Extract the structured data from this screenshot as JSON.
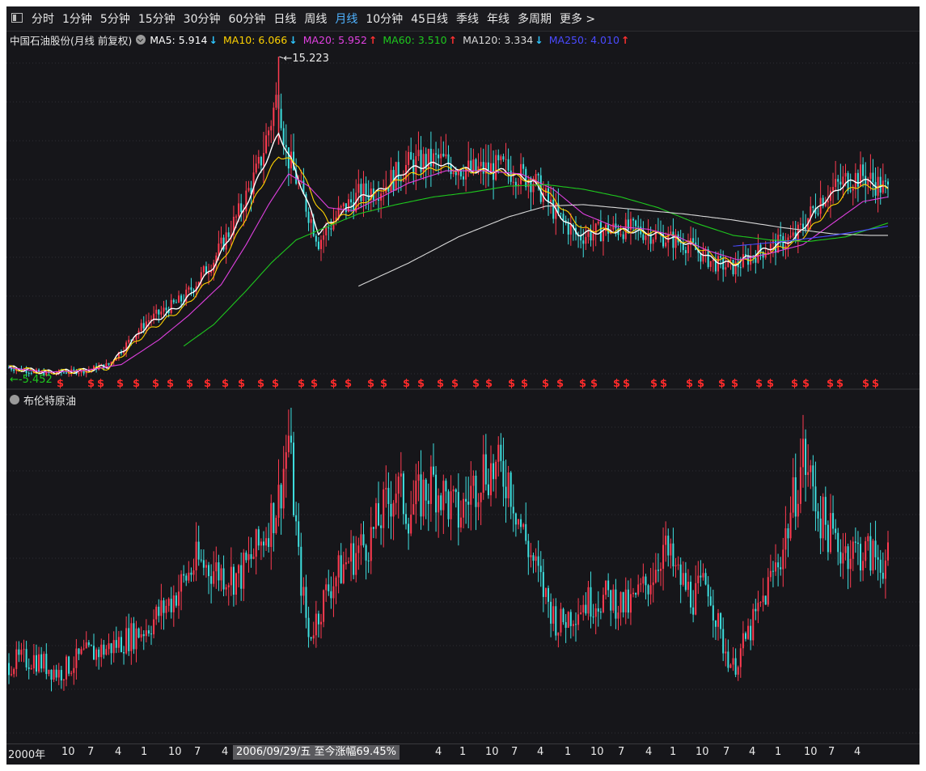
{
  "tabs": [
    "分时",
    "1分钟",
    "5分钟",
    "15分钟",
    "30分钟",
    "60分钟",
    "日线",
    "周线",
    "月线",
    "10分钟",
    "45日线",
    "季线",
    "年线",
    "多周期",
    "更多 >"
  ],
  "active_tab": 8,
  "stock": {
    "name": "中国石油股份(月线 前复权)"
  },
  "ma_legend": [
    {
      "label": "MA5: 5.914",
      "color": "#ffffff",
      "arrow": "↓",
      "arrow_color": "#2ec6ff"
    },
    {
      "label": "MA10: 6.066",
      "color": "#ffd200",
      "arrow": "↓",
      "arrow_color": "#2ec6ff"
    },
    {
      "label": "MA20: 5.952",
      "color": "#e040e0",
      "arrow": "↑",
      "arrow_color": "#ff3030"
    },
    {
      "label": "MA60: 3.510",
      "color": "#1ec81e",
      "arrow": "↑",
      "arrow_color": "#ff3030"
    },
    {
      "label": "MA120: 3.334",
      "color": "#d8d8d8",
      "arrow": "↓",
      "arrow_color": "#2ec6ff"
    },
    {
      "label": "MA250: 4.010",
      "color": "#4a4aff",
      "arrow": "↑",
      "arrow_color": "#ff3030"
    }
  ],
  "sub_chart": {
    "title": "布伦特原油"
  },
  "cursor_label": "2006/09/29/五  至今涨幅69.45%",
  "x_ticks": [
    "2000年",
    "10",
    "7",
    "4",
    "1",
    "10",
    "7",
    "4",
    "4",
    "1",
    "10",
    "7",
    "4",
    "1",
    "10",
    "7",
    "4",
    "1",
    "10",
    "7",
    "4",
    "1",
    "10",
    "7",
    "4"
  ],
  "colors": {
    "up": "#ff3b50",
    "down": "#3ee0e0",
    "bg": "#16161a",
    "grid": "#2e2e34"
  },
  "chart_data": [
    {
      "type": "candlestick",
      "title": "中国石油股份(月线 前复权)",
      "annotations": {
        "max": "15.223",
        "min": "-5.452",
        "marker": "$"
      },
      "y_annotated_range": [
        -5.452,
        15.223
      ],
      "anchors": [
        [
          0,
          -5.0
        ],
        [
          15,
          -5.4
        ],
        [
          30,
          -5.2
        ],
        [
          40,
          -4.8
        ],
        [
          55,
          -2.0
        ],
        [
          70,
          -0.5
        ],
        [
          82,
          2.0
        ],
        [
          92,
          5.0
        ],
        [
          100,
          8.0
        ],
        [
          108,
          13.0
        ],
        [
          111,
          9.0
        ],
        [
          118,
          6.0
        ],
        [
          124,
          3.2
        ],
        [
          132,
          5.0
        ],
        [
          140,
          6.2
        ],
        [
          150,
          6.8
        ],
        [
          160,
          8.2
        ],
        [
          172,
          8.5
        ],
        [
          185,
          7.8
        ],
        [
          198,
          8.0
        ],
        [
          210,
          7.2
        ],
        [
          220,
          4.8
        ],
        [
          228,
          3.5
        ],
        [
          240,
          4.0
        ],
        [
          250,
          4.0
        ],
        [
          262,
          3.5
        ],
        [
          272,
          3.0
        ],
        [
          282,
          1.8
        ],
        [
          290,
          1.5
        ],
        [
          300,
          2.5
        ],
        [
          315,
          3.5
        ],
        [
          325,
          6.0
        ],
        [
          335,
          7.2
        ],
        [
          342,
          7.5
        ],
        [
          352,
          6.5
        ]
      ],
      "ma_lines": [
        {
          "name": "MA5",
          "start": 0,
          "anchors": [
            [
              0,
              -5.0
            ],
            [
              15,
              -5.3
            ],
            [
              30,
              -5.2
            ],
            [
              40,
              -4.9
            ],
            [
              55,
              -2.3
            ],
            [
              70,
              -0.8
            ],
            [
              82,
              1.6
            ],
            [
              92,
              4.5
            ],
            [
              100,
              7.4
            ],
            [
              108,
              10.2
            ],
            [
              113,
              8.5
            ],
            [
              118,
              6.4
            ],
            [
              124,
              3.8
            ],
            [
              132,
              4.8
            ],
            [
              140,
              6.0
            ],
            [
              150,
              6.6
            ],
            [
              160,
              7.9
            ],
            [
              172,
              8.3
            ],
            [
              185,
              7.8
            ],
            [
              198,
              7.8
            ],
            [
              210,
              7.1
            ],
            [
              220,
              5.0
            ],
            [
              228,
              3.7
            ],
            [
              240,
              3.9
            ],
            [
              250,
              3.9
            ],
            [
              262,
              3.6
            ],
            [
              272,
              3.1
            ],
            [
              282,
              2.0
            ],
            [
              290,
              1.7
            ],
            [
              300,
              2.5
            ],
            [
              315,
              3.4
            ],
            [
              325,
              5.6
            ],
            [
              335,
              7.0
            ],
            [
              342,
              7.2
            ],
            [
              352,
              6.6
            ]
          ]
        },
        {
          "name": "MA10",
          "start": 0,
          "anchors": [
            [
              0,
              -5.0
            ],
            [
              15,
              -5.3
            ],
            [
              30,
              -5.2
            ],
            [
              40,
              -5.0
            ],
            [
              55,
              -2.7
            ],
            [
              70,
              -1.1
            ],
            [
              82,
              1.0
            ],
            [
              92,
              3.8
            ],
            [
              100,
              6.5
            ],
            [
              108,
              8.8
            ],
            [
              116,
              8.2
            ],
            [
              122,
              6.0
            ],
            [
              128,
              4.4
            ],
            [
              136,
              5.0
            ],
            [
              146,
              6.2
            ],
            [
              158,
              7.4
            ],
            [
              172,
              8.0
            ],
            [
              185,
              7.8
            ],
            [
              198,
              7.7
            ],
            [
              212,
              7.0
            ],
            [
              222,
              5.3
            ],
            [
              230,
              4.0
            ],
            [
              242,
              3.9
            ],
            [
              252,
              3.9
            ],
            [
              264,
              3.6
            ],
            [
              274,
              3.0
            ],
            [
              284,
              2.1
            ],
            [
              292,
              1.8
            ],
            [
              302,
              2.4
            ],
            [
              316,
              3.2
            ],
            [
              328,
              5.2
            ],
            [
              338,
              6.8
            ],
            [
              352,
              6.7
            ]
          ]
        },
        {
          "name": "MA20",
          "start": 0,
          "anchors": [
            [
              0,
              -5.0
            ],
            [
              15,
              -5.3
            ],
            [
              30,
              -5.2
            ],
            [
              45,
              -4.8
            ],
            [
              60,
              -3.2
            ],
            [
              72,
              -1.6
            ],
            [
              85,
              0.4
            ],
            [
              95,
              3.0
            ],
            [
              104,
              5.6
            ],
            [
              112,
              7.6
            ],
            [
              120,
              6.8
            ],
            [
              128,
              5.4
            ],
            [
              138,
              5.2
            ],
            [
              148,
              6.0
            ],
            [
              160,
              7.0
            ],
            [
              175,
              7.8
            ],
            [
              190,
              7.8
            ],
            [
              205,
              7.6
            ],
            [
              218,
              6.6
            ],
            [
              230,
              5.0
            ],
            [
              242,
              4.2
            ],
            [
              256,
              4.0
            ],
            [
              268,
              3.5
            ],
            [
              280,
              2.6
            ],
            [
              292,
              2.0
            ],
            [
              304,
              2.4
            ],
            [
              318,
              3.0
            ],
            [
              330,
              4.4
            ],
            [
              342,
              5.8
            ],
            [
              352,
              6.1
            ]
          ]
        },
        {
          "name": "MA60",
          "start": 70,
          "anchors": [
            [
              70,
              -3.6
            ],
            [
              82,
              -2.2
            ],
            [
              95,
              0.0
            ],
            [
              105,
              1.8
            ],
            [
              115,
              3.3
            ],
            [
              125,
              4.0
            ],
            [
              140,
              5.0
            ],
            [
              155,
              5.6
            ],
            [
              170,
              6.1
            ],
            [
              185,
              6.4
            ],
            [
              200,
              6.8
            ],
            [
              215,
              6.9
            ],
            [
              230,
              6.6
            ],
            [
              245,
              6.1
            ],
            [
              260,
              5.4
            ],
            [
              275,
              4.4
            ],
            [
              290,
              3.6
            ],
            [
              305,
              3.3
            ],
            [
              320,
              3.2
            ],
            [
              335,
              3.5
            ],
            [
              352,
              4.4
            ]
          ]
        },
        {
          "name": "MA120",
          "start": 140,
          "anchors": [
            [
              140,
              0.3
            ],
            [
              160,
              1.8
            ],
            [
              180,
              3.5
            ],
            [
              200,
              4.8
            ],
            [
              215,
              5.5
            ],
            [
              230,
              5.6
            ],
            [
              250,
              5.3
            ],
            [
              270,
              5.0
            ],
            [
              290,
              4.6
            ],
            [
              310,
              4.1
            ],
            [
              330,
              3.7
            ],
            [
              345,
              3.6
            ],
            [
              352,
              3.6
            ]
          ]
        },
        {
          "name": "MA250",
          "start": 290,
          "anchors": [
            [
              290,
              2.9
            ],
            [
              310,
              3.2
            ],
            [
              330,
              3.6
            ],
            [
              345,
              4.0
            ],
            [
              352,
              4.2
            ]
          ]
        }
      ],
      "sub_anchors": [
        [
          0,
          30
        ],
        [
          10,
          32
        ],
        [
          20,
          26
        ],
        [
          30,
          33
        ],
        [
          40,
          36
        ],
        [
          55,
          44
        ],
        [
          65,
          55
        ],
        [
          75,
          70
        ],
        [
          85,
          66
        ],
        [
          92,
          64
        ],
        [
          100,
          76
        ],
        [
          108,
          95
        ],
        [
          112,
          120
        ],
        [
          116,
          70
        ],
        [
          120,
          40
        ],
        [
          128,
          60
        ],
        [
          135,
          70
        ],
        [
          145,
          80
        ],
        [
          155,
          100
        ],
        [
          160,
          90
        ],
        [
          170,
          102
        ],
        [
          180,
          88
        ],
        [
          190,
          108
        ],
        [
          200,
          104
        ],
        [
          205,
          84
        ],
        [
          210,
          70
        ],
        [
          215,
          56
        ],
        [
          220,
          45
        ],
        [
          230,
          54
        ],
        [
          240,
          56
        ],
        [
          248,
          52
        ],
        [
          256,
          62
        ],
        [
          262,
          76
        ],
        [
          268,
          64
        ],
        [
          274,
          56
        ],
        [
          280,
          62
        ],
        [
          285,
          40
        ],
        [
          290,
          28
        ],
        [
          300,
          50
        ],
        [
          310,
          76
        ],
        [
          318,
          112
        ],
        [
          325,
          88
        ],
        [
          332,
          76
        ],
        [
          342,
          74
        ],
        [
          352,
          70
        ]
      ]
    }
  ]
}
